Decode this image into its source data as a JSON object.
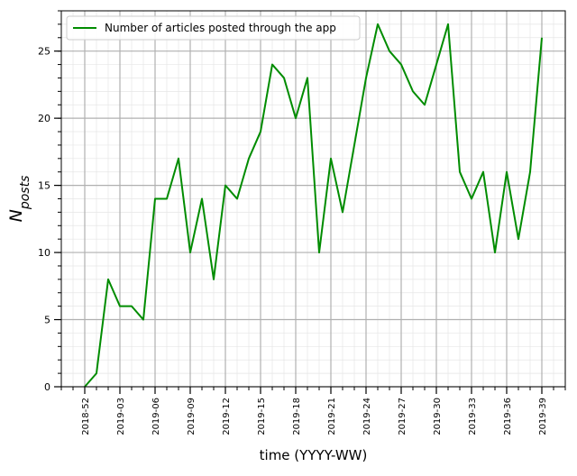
{
  "chart_data": {
    "type": "line",
    "xlabel": "time (YYYY-WW)",
    "ylabel_main": "N",
    "ylabel_sub": "posts",
    "ylim": [
      0,
      28
    ],
    "grid": true,
    "legend_position": "top-left",
    "y_ticks": [
      0,
      5,
      10,
      15,
      20,
      25
    ],
    "x_tick_labels": [
      "2018-52",
      "2019-03",
      "2019-06",
      "2019-09",
      "2019-12",
      "2019-15",
      "2019-18",
      "2019-21",
      "2019-24",
      "2019-27",
      "2019-30",
      "2019-33",
      "2019-36",
      "2019-39"
    ],
    "x_tick_indices": [
      0,
      3,
      6,
      9,
      12,
      15,
      18,
      21,
      24,
      27,
      30,
      33,
      36,
      39
    ],
    "x_minor_ticks": [
      -1,
      40
    ],
    "x_range": [
      -2,
      41
    ],
    "series": [
      {
        "name": "Number of articles posted through the app",
        "color": "#008c00",
        "x_index": [
          0,
          1,
          2,
          3,
          4,
          5,
          6,
          7,
          8,
          9,
          10,
          11,
          12,
          13,
          14,
          15,
          16,
          17,
          18,
          19,
          20,
          21,
          22,
          23,
          24,
          25,
          26,
          27,
          28,
          29,
          30,
          31,
          32,
          33,
          34,
          35,
          36,
          37,
          38,
          39
        ],
        "values": [
          0,
          1,
          8,
          6,
          6,
          5,
          14,
          14,
          17,
          10,
          14,
          8,
          15,
          14,
          17,
          19,
          24,
          23,
          20,
          23,
          10,
          17,
          13,
          18,
          23,
          27,
          25,
          24,
          22,
          21,
          24,
          27,
          16,
          14,
          16,
          10,
          16,
          11,
          16,
          26
        ]
      }
    ]
  }
}
